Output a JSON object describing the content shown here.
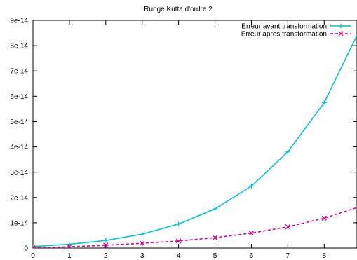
{
  "chart_data": {
    "type": "line",
    "title": "Runge Kutta d'ordre 2",
    "xlabel": "",
    "ylabel": "",
    "xlim": [
      0,
      8.9
    ],
    "ylim": [
      0,
      9e-14
    ],
    "x_ticks": [
      0,
      1,
      2,
      3,
      4,
      5,
      6,
      7,
      8
    ],
    "y_ticks": [
      {
        "value": 0,
        "label": "0"
      },
      {
        "value": 1e-14,
        "label": "1e-14"
      },
      {
        "value": 2e-14,
        "label": "2e-14"
      },
      {
        "value": 3e-14,
        "label": "3e-14"
      },
      {
        "value": 4e-14,
        "label": "4e-14"
      },
      {
        "value": 5e-14,
        "label": "5e-14"
      },
      {
        "value": 6e-14,
        "label": "6e-14"
      },
      {
        "value": 7e-14,
        "label": "7e-14"
      },
      {
        "value": 8e-14,
        "label": "8e-14"
      },
      {
        "value": 9e-14,
        "label": "9e-14"
      }
    ],
    "grid": false,
    "legend_position": "top-right",
    "series": [
      {
        "name": "Erreur avant transformation",
        "color": "#00c8c8",
        "marker": "plus",
        "line": "solid",
        "x": [
          0,
          1,
          2,
          3,
          4,
          5,
          6,
          7,
          8,
          9
        ],
        "y": [
          6e-16,
          1.5e-15,
          3e-15,
          5.5e-15,
          9.5e-15,
          1.55e-14,
          2.45e-14,
          3.8e-14,
          5.75e-14,
          8.7e-14
        ]
      },
      {
        "name": "Erreur apres transformation",
        "color": "#e0008c",
        "marker": "cross",
        "line": "dashed",
        "x": [
          0,
          1,
          2,
          3,
          4,
          5,
          6,
          7,
          8,
          9
        ],
        "y": [
          1e-16,
          5e-16,
          1.1e-15,
          1.9e-15,
          2.8e-15,
          4.1e-15,
          5.9e-15,
          8.4e-15,
          1.18e-14,
          1.65e-14
        ]
      }
    ]
  }
}
